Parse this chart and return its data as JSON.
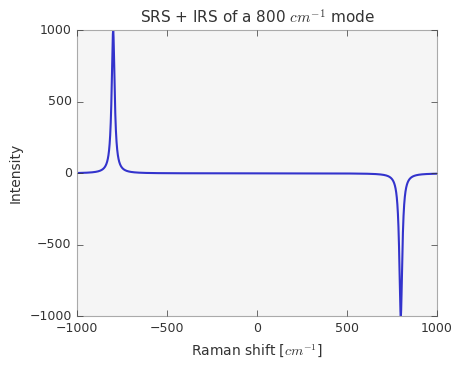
{
  "ylabel": "Intensity",
  "xlim": [
    -1000,
    1000
  ],
  "ylim": [
    -1000,
    1000
  ],
  "line_color": "#3333cc",
  "line_width": 1.5,
  "mode_freq": 800,
  "gamma": 10,
  "amplitude": 1000,
  "x_start": -1000,
  "x_end": 1000,
  "num_points": 20000,
  "yticks": [
    -1000,
    -500,
    0,
    500,
    1000
  ],
  "xticks": [
    -1000,
    -500,
    0,
    500,
    1000
  ],
  "bg_color": "#eaeaf2",
  "grid_color": "#ffffff",
  "axes_bg": "#eaeaf2",
  "spine_color": "#cccccc",
  "tick_color": "#555555",
  "label_color": "#333333"
}
